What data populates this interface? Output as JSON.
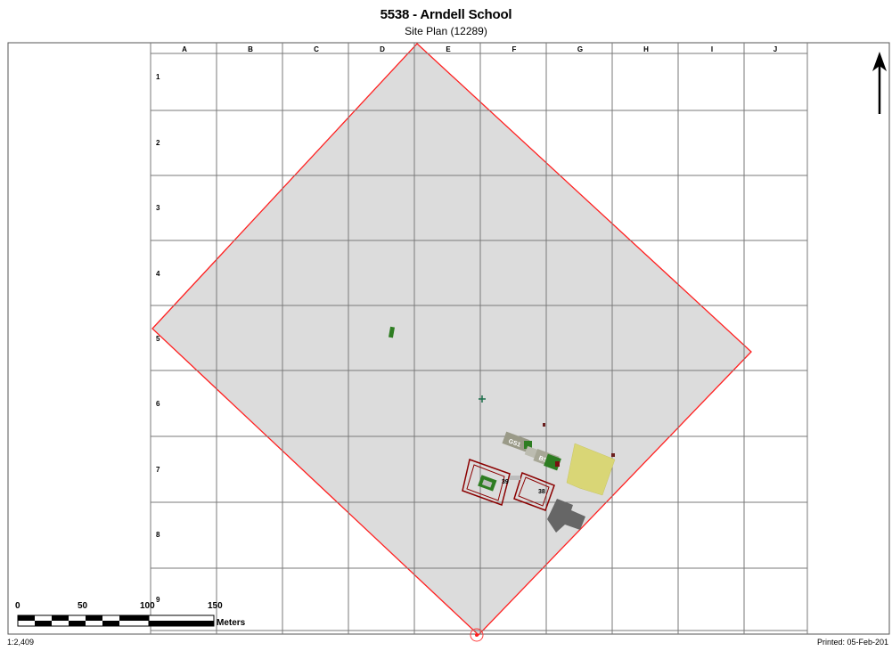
{
  "header": {
    "title": "5538 - Arndell School",
    "subtitle": "Site Plan (12289)"
  },
  "grid": {
    "columns": [
      "A",
      "B",
      "C",
      "D",
      "E",
      "F",
      "G",
      "H",
      "I",
      "J"
    ],
    "rows": [
      "1",
      "2",
      "3",
      "4",
      "5",
      "6",
      "7",
      "8",
      "9"
    ]
  },
  "buildings": {
    "label_39": "39",
    "label_38": "38",
    "label_gs1": "GS1",
    "label_bs": "BS"
  },
  "scalebar": {
    "ticks": [
      "0",
      "50",
      "100",
      "150"
    ],
    "unit": "Meters",
    "ratio": "1:2,409"
  },
  "footer": {
    "printed": "Printed: 05-Feb-201"
  },
  "colors": {
    "site_fill": "#dcdcdc",
    "site_boundary": "#ff0000",
    "grid_line": "#7a7a7a",
    "building_outline": "#8b0000",
    "vegetation": "#2e7d22",
    "yellow_area": "#d9d676",
    "dark_building": "#666666"
  },
  "icons": {
    "north_arrow": "north-arrow-icon"
  }
}
